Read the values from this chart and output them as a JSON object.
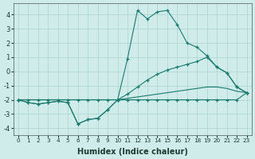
{
  "xlabel": "Humidex (Indice chaleur)",
  "x": [
    0,
    1,
    2,
    3,
    4,
    5,
    6,
    7,
    8,
    9,
    10,
    11,
    12,
    13,
    14,
    15,
    16,
    17,
    18,
    19,
    20,
    21,
    22,
    23
  ],
  "line1": [
    -2.0,
    -2.2,
    -2.3,
    -2.2,
    -2.1,
    -2.2,
    -3.7,
    -3.4,
    -3.3,
    -2.7,
    -2.0,
    0.9,
    4.3,
    3.7,
    4.2,
    4.3,
    3.3,
    2.0,
    1.7,
    1.1,
    0.3,
    -0.1,
    -1.1,
    -1.5
  ],
  "line2": [
    -2.0,
    -2.2,
    -2.3,
    -2.2,
    -2.1,
    -2.2,
    -3.7,
    -3.4,
    -3.3,
    -2.7,
    -2.0,
    -2.0,
    -2.0,
    -2.0,
    -2.0,
    -2.0,
    -2.0,
    -2.0,
    -2.0,
    -2.0,
    -2.0,
    -2.0,
    -2.0,
    -1.5
  ],
  "line3": [
    -2.0,
    -2.0,
    -2.0,
    -2.0,
    -2.0,
    -2.0,
    -2.0,
    -2.0,
    -2.0,
    -2.0,
    -2.0,
    -1.6,
    -1.1,
    -0.6,
    -0.2,
    0.1,
    0.3,
    0.5,
    0.7,
    1.0,
    0.3,
    -0.1,
    -1.1,
    -1.5
  ],
  "line4": [
    -2.0,
    -2.0,
    -2.0,
    -2.0,
    -2.0,
    -2.0,
    -2.0,
    -2.0,
    -2.0,
    -2.0,
    -2.0,
    -1.9,
    -1.8,
    -1.7,
    -1.6,
    -1.5,
    -1.4,
    -1.3,
    -1.2,
    -1.1,
    -1.1,
    -1.2,
    -1.4,
    -1.5
  ],
  "color": "#1a7a6e",
  "bg_color": "#d0ecea",
  "grid_color": "#a8d4ce",
  "ylim": [
    -4.5,
    4.8
  ],
  "yticks": [
    -4,
    -3,
    -2,
    -1,
    0,
    1,
    2,
    3,
    4
  ]
}
